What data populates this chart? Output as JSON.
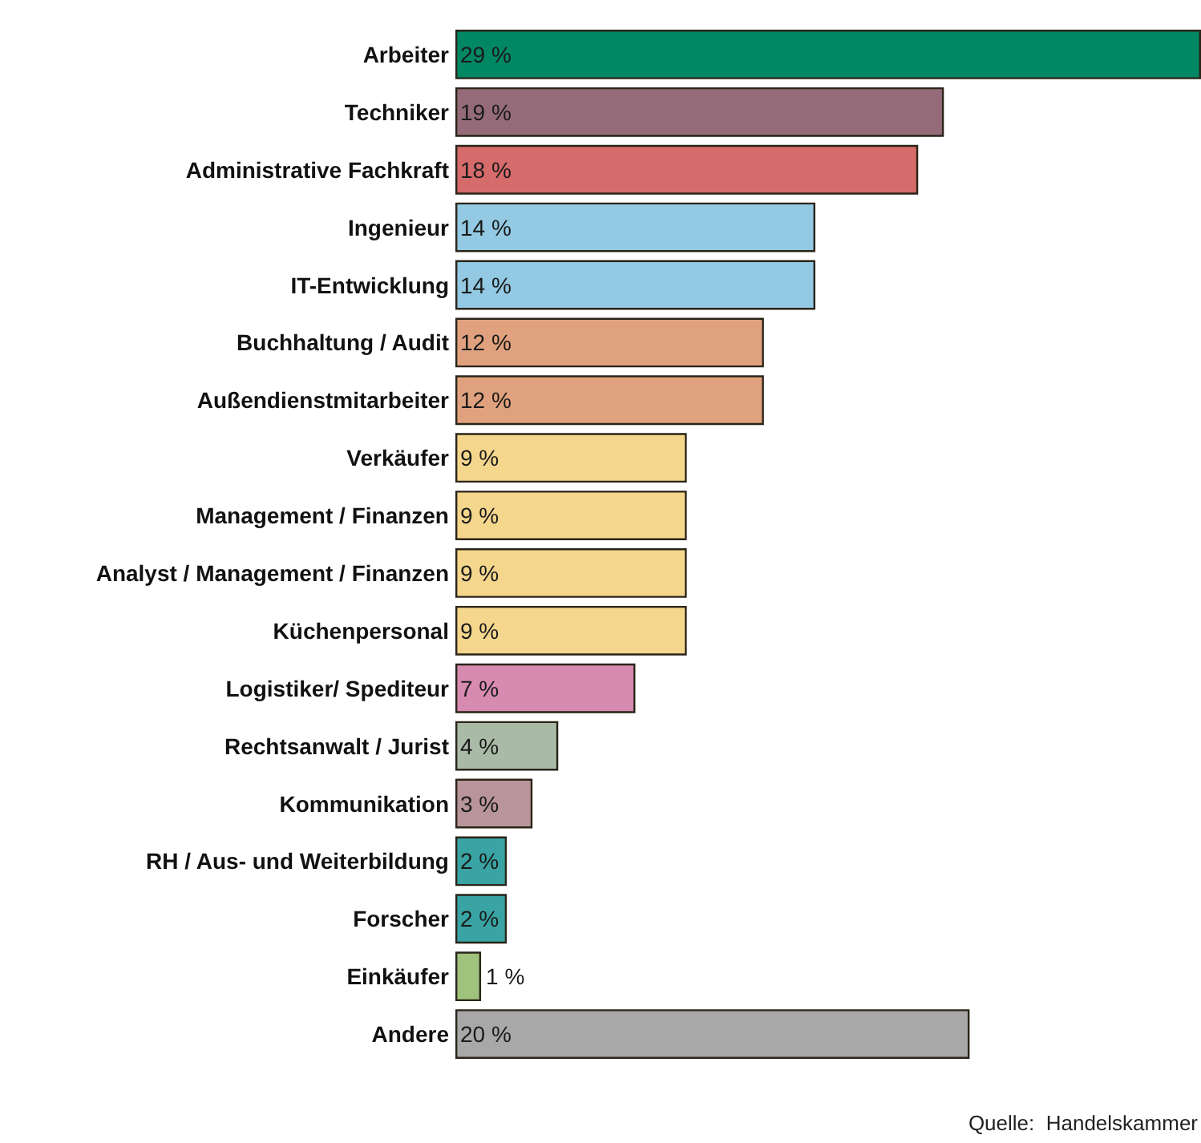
{
  "chart_data": {
    "type": "bar",
    "orientation": "horizontal",
    "categories": [
      "Arbeiter",
      "Techniker",
      "Administrative Fachkraft",
      "Ingenieur",
      "IT-Entwicklung",
      "Buchhaltung / Audit",
      "Außendienstmitarbeiter",
      "Verkäufer",
      "Management / Finanzen",
      "Analyst / Management / Finanzen",
      "Küchenpersonal",
      "Logistiker/ Spediteur",
      "Rechtsanwalt / Jurist",
      "Kommunikation",
      "RH / Aus- und Weiterbildung",
      "Forscher",
      "Einkäufer",
      "Andere"
    ],
    "values": [
      29,
      19,
      18,
      14,
      14,
      12,
      12,
      9,
      9,
      9,
      9,
      7,
      4,
      3,
      2,
      2,
      1,
      20
    ],
    "value_labels": [
      "29 %",
      "19 %",
      "18 %",
      "14 %",
      "14 %",
      "12 %",
      "12 %",
      "9 %",
      "9 %",
      "9 %",
      "9 %",
      "7 %",
      "4 %",
      "3 %",
      "2 %",
      "2 %",
      "1 %",
      "20 %"
    ],
    "colors": [
      "#008763",
      "#956b7a",
      "#d66b6b",
      "#93c9e2",
      "#93c9e2",
      "#e0a27e",
      "#e0a27e",
      "#f5d68d",
      "#f5d68d",
      "#f5d68d",
      "#f5d68d",
      "#d88bb0",
      "#a9bba6",
      "#b8959a",
      "#3aa3a3",
      "#3aa3a3",
      "#9fc27d",
      "#a8a8a8"
    ],
    "annotations": [
      "Quelle:  Handelskammer"
    ]
  }
}
